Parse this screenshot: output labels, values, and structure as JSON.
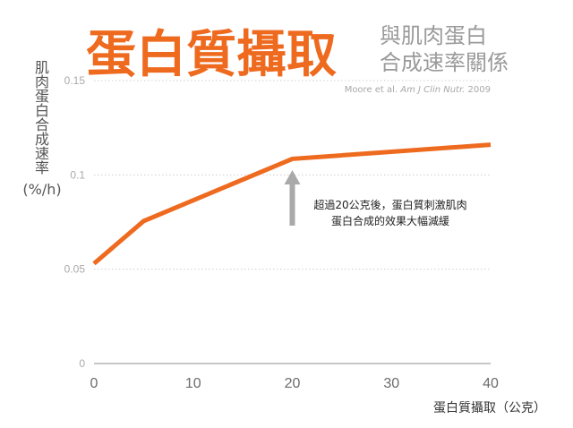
{
  "title": {
    "main": "蛋白質攝取",
    "sub_line1": "與肌肉蛋白",
    "sub_line2": "合成速率關係"
  },
  "source": {
    "authors": "Moore et al. ",
    "journal": "Am J Clin Nutr.",
    "year": " 2009"
  },
  "chart_data": {
    "type": "line",
    "title": "蛋白質攝取",
    "xlabel": "蛋白質攝取（公克）",
    "ylabel_lines": [
      "肌",
      "肉",
      "蛋",
      "白",
      "合",
      "成",
      "速",
      "率"
    ],
    "ylabel_unit": "(%/h)",
    "xlim": [
      0,
      40
    ],
    "ylim": [
      0,
      0.15
    ],
    "xticks": [
      0,
      10,
      20,
      30,
      40
    ],
    "xtick_labels": [
      "0",
      "10",
      "20",
      "30",
      "40"
    ],
    "yticks": [
      0,
      0.05,
      0.1,
      0.15
    ],
    "ytick_labels": [
      "0",
      "0.05",
      "0.1",
      "0.15"
    ],
    "grid": true,
    "series": [
      {
        "color": "#ee6a1f",
        "x": [
          0,
          5,
          20,
          40
        ],
        "y": [
          0.053,
          0.0755,
          0.1085,
          0.116
        ]
      }
    ],
    "annotation": {
      "line1": "超過20公克後，蛋白質刺激肌肉",
      "line2": "蛋白合成的效果大幅減緩",
      "arrow_color": "#a9a9a9"
    }
  }
}
